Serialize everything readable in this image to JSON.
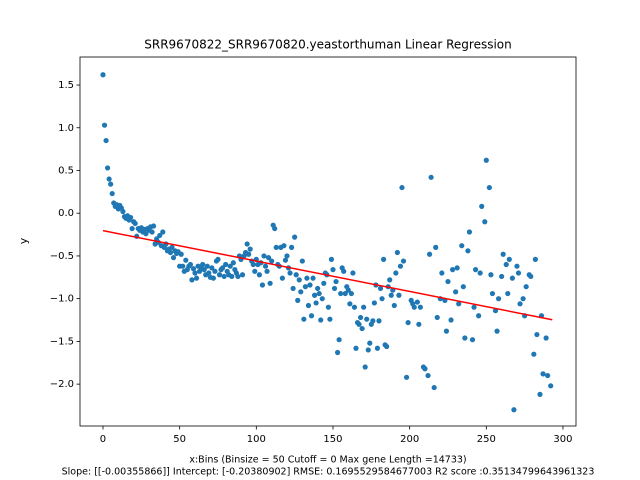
{
  "chart_data": {
    "type": "scatter",
    "title": "SRR9670822_SRR9670820.yeastorthuman Linear Regression",
    "ylabel": "y",
    "xlabel": [
      "x:Bins  (Binsize = 50 Cutoff = 0 Max gene Length =14733)",
      "Slope: [[-0.00355866]] Intercept: [-0.20380902] RMSE: 0.1695529584677003 R2 score :0.35134799643961323"
    ],
    "color": "#1f77b4",
    "fit": {
      "color": "#ff0000",
      "x": [
        0,
        293
      ],
      "y": [
        -0.2038,
        -1.2465
      ]
    },
    "xlim": [
      -15,
      308.5
    ],
    "ylim": [
      -2.49,
      1.828
    ],
    "xticks": [
      0,
      50,
      100,
      150,
      200,
      250,
      300
    ],
    "yticks": [
      {
        "value": -2.0,
        "label": "−2.0"
      },
      {
        "value": -1.5,
        "label": "−1.5"
      },
      {
        "value": -1.0,
        "label": "−1.0"
      },
      {
        "value": -0.5,
        "label": "−0.5"
      },
      {
        "value": 0.0,
        "label": "0.0"
      },
      {
        "value": 0.5,
        "label": "0.5"
      },
      {
        "value": 1.0,
        "label": "1.0"
      },
      {
        "value": 1.5,
        "label": "1.5"
      }
    ],
    "x": [
      0,
      1,
      2,
      3,
      4,
      5,
      6,
      7,
      8,
      9,
      10,
      11,
      12,
      13,
      14,
      15,
      16,
      17,
      18,
      19,
      20,
      21,
      22,
      23,
      24,
      25,
      26,
      27,
      28,
      29,
      30,
      31,
      32,
      33,
      34,
      35,
      36,
      37,
      38,
      39,
      40,
      41,
      42,
      43,
      44,
      45,
      46,
      47,
      48,
      49,
      50,
      51,
      52,
      53,
      54,
      55,
      56,
      57,
      58,
      59,
      60,
      61,
      62,
      63,
      64,
      65,
      66,
      67,
      68,
      69,
      70,
      71,
      72,
      73,
      74,
      75,
      76,
      77,
      78,
      79,
      80,
      81,
      82,
      83,
      84,
      85,
      86,
      87,
      88,
      89,
      90,
      91,
      92,
      93,
      94,
      95,
      96,
      97,
      98,
      99,
      100,
      101,
      102,
      103,
      104,
      105,
      106,
      107,
      108,
      109,
      110,
      111,
      112,
      113,
      114,
      115,
      116,
      117,
      118,
      119,
      120,
      121,
      122,
      123,
      124,
      125,
      126,
      127,
      128,
      129,
      130,
      131,
      132,
      133,
      134,
      135,
      136,
      137,
      138,
      139,
      140,
      141,
      142,
      143,
      144,
      145,
      146,
      147,
      148,
      149,
      150,
      151,
      152,
      153,
      154,
      155,
      156,
      157,
      158,
      159,
      160,
      161,
      162,
      163,
      164,
      165,
      166,
      167,
      168,
      169,
      170,
      171,
      172,
      173,
      174,
      175,
      176,
      177,
      178,
      179,
      180,
      181,
      182,
      183,
      184,
      185,
      186,
      187,
      188,
      189,
      190,
      191,
      192,
      193,
      194,
      195,
      196,
      198,
      199,
      201,
      202,
      203,
      205,
      206,
      207,
      209,
      210,
      212,
      213,
      214,
      216,
      217,
      218,
      220,
      221,
      223,
      224,
      225,
      227,
      228,
      230,
      231,
      232,
      234,
      235,
      236,
      238,
      239,
      241,
      242,
      243,
      245,
      246,
      247,
      249,
      250,
      252,
      253,
      254,
      256,
      257,
      258,
      260,
      261,
      263,
      264,
      265,
      267,
      268,
      270,
      271,
      272,
      274,
      275,
      276,
      278,
      279,
      281,
      282,
      283,
      285,
      286,
      287,
      289,
      290,
      292
    ],
    "y": [
      1.62,
      1.03,
      0.85,
      0.53,
      0.4,
      0.34,
      0.23,
      0.12,
      0.08,
      0.1,
      0.05,
      0.09,
      0.06,
      0.02,
      -0.04,
      -0.06,
      -0.03,
      -0.08,
      -0.05,
      -0.18,
      -0.1,
      -0.12,
      -0.27,
      -0.18,
      -0.2,
      -0.17,
      -0.22,
      -0.19,
      -0.24,
      -0.18,
      -0.2,
      -0.16,
      -0.22,
      -0.15,
      -0.36,
      -0.3,
      -0.34,
      -0.26,
      -0.38,
      -0.22,
      -0.4,
      -0.36,
      -0.44,
      -0.42,
      -0.46,
      -0.4,
      -0.52,
      -0.44,
      -0.47,
      -0.45,
      -0.62,
      -0.48,
      -0.62,
      -0.68,
      -0.55,
      -0.66,
      -0.62,
      -0.6,
      -0.78,
      -0.65,
      -0.7,
      -0.76,
      -0.62,
      -0.68,
      -0.64,
      -0.6,
      -0.66,
      -0.72,
      -0.62,
      -0.7,
      -0.75,
      -0.64,
      -0.76,
      -0.68,
      -0.56,
      -0.54,
      -0.72,
      -0.66,
      -0.64,
      -0.74,
      -0.6,
      -0.68,
      -0.72,
      -0.62,
      -0.74,
      -0.58,
      -0.66,
      -0.7,
      -0.74,
      -0.5,
      -0.54,
      -0.72,
      -0.5,
      -0.46,
      -0.36,
      -0.48,
      -0.42,
      -0.56,
      -0.6,
      -0.68,
      -0.54,
      -0.6,
      -0.72,
      -0.58,
      -0.84,
      -0.5,
      -0.62,
      -0.68,
      -0.52,
      -0.82,
      -0.56,
      -0.14,
      -0.18,
      -0.4,
      -0.6,
      -0.62,
      -0.4,
      -0.76,
      -0.38,
      -0.55,
      -0.5,
      -0.64,
      -0.7,
      -0.4,
      -0.88,
      -0.28,
      -0.72,
      -1.02,
      -0.78,
      -0.92,
      -0.56,
      -1.24,
      -0.86,
      -0.76,
      -1.08,
      -0.84,
      -1.2,
      -0.76,
      -0.96,
      -1.05,
      -0.88,
      -0.94,
      -1.25,
      -1.0,
      -0.82,
      -0.7,
      -0.72,
      -1.1,
      -1.24,
      -0.54,
      -0.66,
      -0.88,
      -0.8,
      -1.63,
      -1.48,
      -0.94,
      -0.64,
      -0.68,
      -0.94,
      -0.86,
      -0.9,
      -1.06,
      -0.94,
      -0.7,
      -1.1,
      -1.58,
      -1.28,
      -1.3,
      -1.22,
      -1.35,
      -1.1,
      -1.8,
      -1.24,
      -1.6,
      -1.52,
      -1.3,
      -1.26,
      -1.05,
      -0.84,
      -1.58,
      -1.26,
      -0.88,
      -1.0,
      -0.54,
      -1.54,
      -1.56,
      -0.86,
      -0.78,
      -0.96,
      -0.9,
      -1.08,
      -0.7,
      -0.46,
      -0.96,
      -0.62,
      0.3,
      -0.56,
      -1.92,
      -1.28,
      -1.02,
      -1.06,
      -1.1,
      -1.04,
      -1.3,
      -1.1,
      -1.8,
      -1.82,
      -1.9,
      -0.48,
      0.42,
      -2.04,
      -0.4,
      -1.22,
      -1.0,
      -0.7,
      -1.02,
      -1.38,
      -0.8,
      -1.25,
      -0.66,
      -0.92,
      -0.64,
      -1.06,
      -0.38,
      -0.86,
      -1.46,
      -0.44,
      -0.22,
      -1.48,
      -1.1,
      -0.66,
      -1.2,
      -0.7,
      0.08,
      -0.1,
      0.62,
      0.3,
      -0.72,
      -0.94,
      -1.14,
      -1.38,
      -1.0,
      -0.74,
      -0.48,
      -0.6,
      -0.94,
      -0.54,
      -0.76,
      -2.3,
      -0.62,
      -0.7,
      -1.06,
      -1.0,
      -1.2,
      -0.86,
      -0.72,
      -0.74,
      -1.65,
      -0.54,
      -1.42,
      -2.12,
      -1.2,
      -1.88,
      -1.46,
      -1.9,
      -2.02
    ]
  }
}
